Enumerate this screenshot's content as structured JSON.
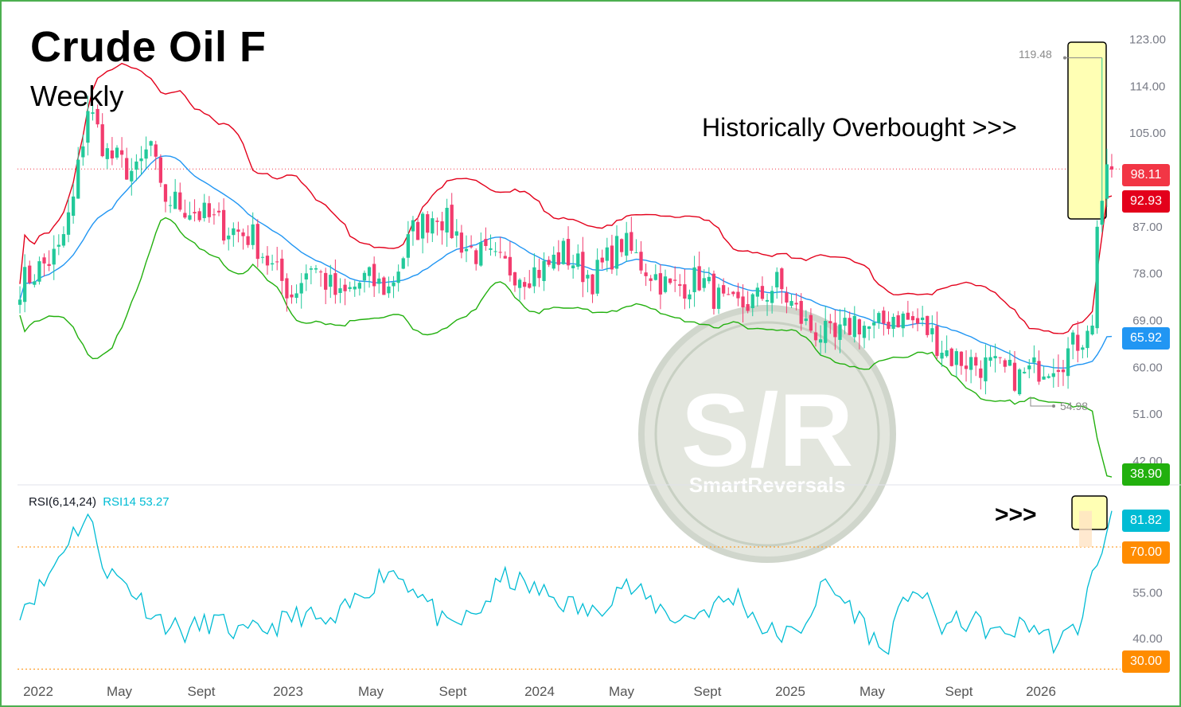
{
  "header": {
    "title": "Crude Oil F",
    "subtitle": "Weekly"
  },
  "annotations": {
    "overbought": "Historically Overbought >>>",
    "rsi_arrow": ">>>"
  },
  "watermark": {
    "mark": "S/R",
    "brand": "SmartReversals"
  },
  "price_markers": {
    "high": "119.48",
    "low": "54.98"
  },
  "price_tags": [
    {
      "label": "98.11",
      "color": "#f23645"
    },
    {
      "label": "92.93",
      "color": "#e3001b"
    },
    {
      "label": "65.92",
      "color": "#2196f3"
    },
    {
      "label": "38.90",
      "color": "#22b00e"
    }
  ],
  "rsi_tags": [
    {
      "label": "81.82",
      "color": "#00bcd4"
    },
    {
      "label": "70.00",
      "color": "#ff8c00"
    },
    {
      "label": "30.00",
      "color": "#ff8c00"
    }
  ],
  "rsi_legend": {
    "name": "RSI(6,14,24)",
    "value": "RSI14 53.27"
  },
  "colors": {
    "up": "#22c99a",
    "down": "#f23c6e",
    "upper_band": "#e3001b",
    "middle_band": "#2196f3",
    "lower_band": "#22b00e",
    "rsi": "#00bcd4",
    "highlight": "#ffffb4"
  },
  "chart_data": [
    {
      "type": "candlestick",
      "title": "Crude Oil F",
      "subtitle": "Weekly",
      "y_ticks": [
        "123.00",
        "114.00",
        "105.00",
        "87.00",
        "78.00",
        "69.00",
        "60.00",
        "51.00",
        "42.00"
      ],
      "x_ticks": [
        "2022",
        "May",
        "Sept",
        "2023",
        "May",
        "Sept",
        "2024",
        "May",
        "Sept",
        "2025",
        "May",
        "Sept",
        "2026"
      ],
      "ylim": [
        38,
        126
      ],
      "indicators": [
        "Bollinger Bands upper",
        "Bollinger Bands middle",
        "Bollinger Bands lower"
      ],
      "last_close": 98.11,
      "upper_band_last": 92.93,
      "middle_band_last": 65.92,
      "lower_band_last": 38.9,
      "period_high": 119.48,
      "period_low": 54.98,
      "price_anchors": {
        "x": [
          0,
          8,
          11,
          14,
          18,
          24,
          27,
          29,
          36,
          42,
          48,
          52,
          56,
          60,
          66,
          71,
          76,
          81,
          86,
          92,
          98,
          104,
          108,
          112,
          118,
          124,
          128,
          134,
          140,
          146,
          152,
          156,
          162,
          168,
          172,
          176,
          180,
          186,
          192,
          200,
          206,
          210,
          215,
          219,
          221,
          222,
          223,
          224,
          225
        ],
        "y": [
          76,
          82,
          92,
          110,
          101,
          97,
          103,
          93,
          90,
          87,
          85,
          79,
          74,
          80,
          73,
          77,
          75,
          86,
          90,
          83,
          80,
          78,
          79,
          82,
          77,
          84,
          80,
          75,
          77,
          71,
          73,
          76,
          68,
          65,
          69,
          67,
          70,
          68,
          62,
          60,
          58,
          60,
          62,
          66,
          68,
          87,
          92,
          99,
          98
        ]
      }
    },
    {
      "type": "line",
      "title": "RSI(6,14,24)",
      "y_ticks": [
        "55.00",
        "40.00"
      ],
      "levels": [
        70,
        30
      ],
      "last_value": 81.82,
      "legend_value": 53.27,
      "ylim": [
        28,
        88
      ],
      "anchors": {
        "x": [
          0,
          5,
          10,
          14,
          18,
          22,
          28,
          34,
          40,
          46,
          52,
          58,
          64,
          70,
          76,
          82,
          88,
          94,
          100,
          106,
          112,
          118,
          124,
          130,
          136,
          142,
          148,
          154,
          160,
          166,
          172,
          178,
          184,
          190,
          196,
          202,
          208,
          214,
          218,
          221,
          223,
          225
        ],
        "y": [
          50,
          58,
          73,
          80,
          62,
          58,
          47,
          42,
          46,
          41,
          44,
          48,
          44,
          54,
          63,
          56,
          43,
          48,
          60,
          56,
          52,
          48,
          58,
          52,
          46,
          50,
          54,
          42,
          41,
          58,
          49,
          35,
          58,
          44,
          46,
          41,
          45,
          38,
          44,
          60,
          68,
          82
        ]
      }
    }
  ]
}
